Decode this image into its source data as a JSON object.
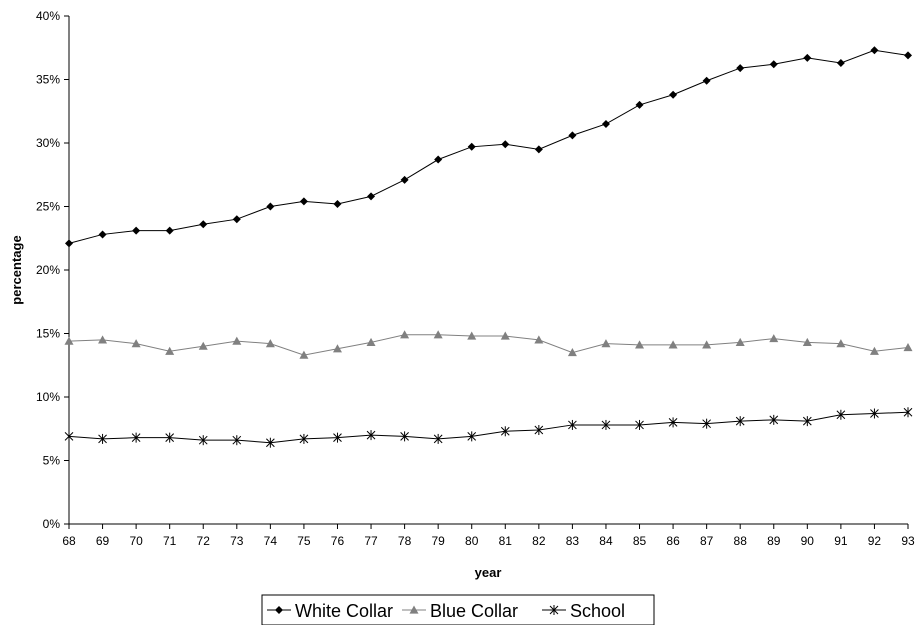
{
  "chart_data": {
    "type": "line",
    "title": "",
    "xlabel": "year",
    "ylabel": "percentage",
    "categories": [
      "68",
      "69",
      "70",
      "71",
      "72",
      "73",
      "74",
      "75",
      "76",
      "77",
      "78",
      "79",
      "80",
      "81",
      "82",
      "83",
      "84",
      "85",
      "86",
      "87",
      "88",
      "89",
      "90",
      "91",
      "92",
      "93"
    ],
    "y_ticks": [
      "0%",
      "5%",
      "10%",
      "15%",
      "20%",
      "25%",
      "30%",
      "35%",
      "40%"
    ],
    "ylim": [
      0,
      40
    ],
    "y_unit": "%",
    "grid": false,
    "legend_position": "bottom",
    "series": [
      {
        "name": "White Collar",
        "marker": "diamond",
        "color": "#000000",
        "values": [
          22.1,
          22.8,
          23.1,
          23.1,
          23.6,
          24.0,
          25.0,
          25.4,
          25.2,
          25.8,
          27.1,
          28.7,
          29.7,
          29.9,
          29.5,
          30.6,
          31.5,
          33.0,
          33.8,
          34.9,
          35.9,
          36.2,
          36.7,
          36.3,
          37.3,
          36.9
        ]
      },
      {
        "name": "Blue Collar",
        "marker": "triangle",
        "color": "#808080",
        "values": [
          14.4,
          14.5,
          14.2,
          13.6,
          14.0,
          14.4,
          14.2,
          13.3,
          13.8,
          14.3,
          14.9,
          14.9,
          14.8,
          14.8,
          14.5,
          13.5,
          14.2,
          14.1,
          14.1,
          14.1,
          14.3,
          14.6,
          14.3,
          14.2,
          13.6,
          13.9
        ]
      },
      {
        "name": "School",
        "marker": "asterisk",
        "color": "#000000",
        "values": [
          6.9,
          6.7,
          6.8,
          6.8,
          6.6,
          6.6,
          6.4,
          6.7,
          6.8,
          7.0,
          6.9,
          6.7,
          6.9,
          7.3,
          7.4,
          7.8,
          7.8,
          7.8,
          8.0,
          7.9,
          8.1,
          8.2,
          8.1,
          8.6,
          8.7,
          8.8
        ]
      }
    ]
  }
}
